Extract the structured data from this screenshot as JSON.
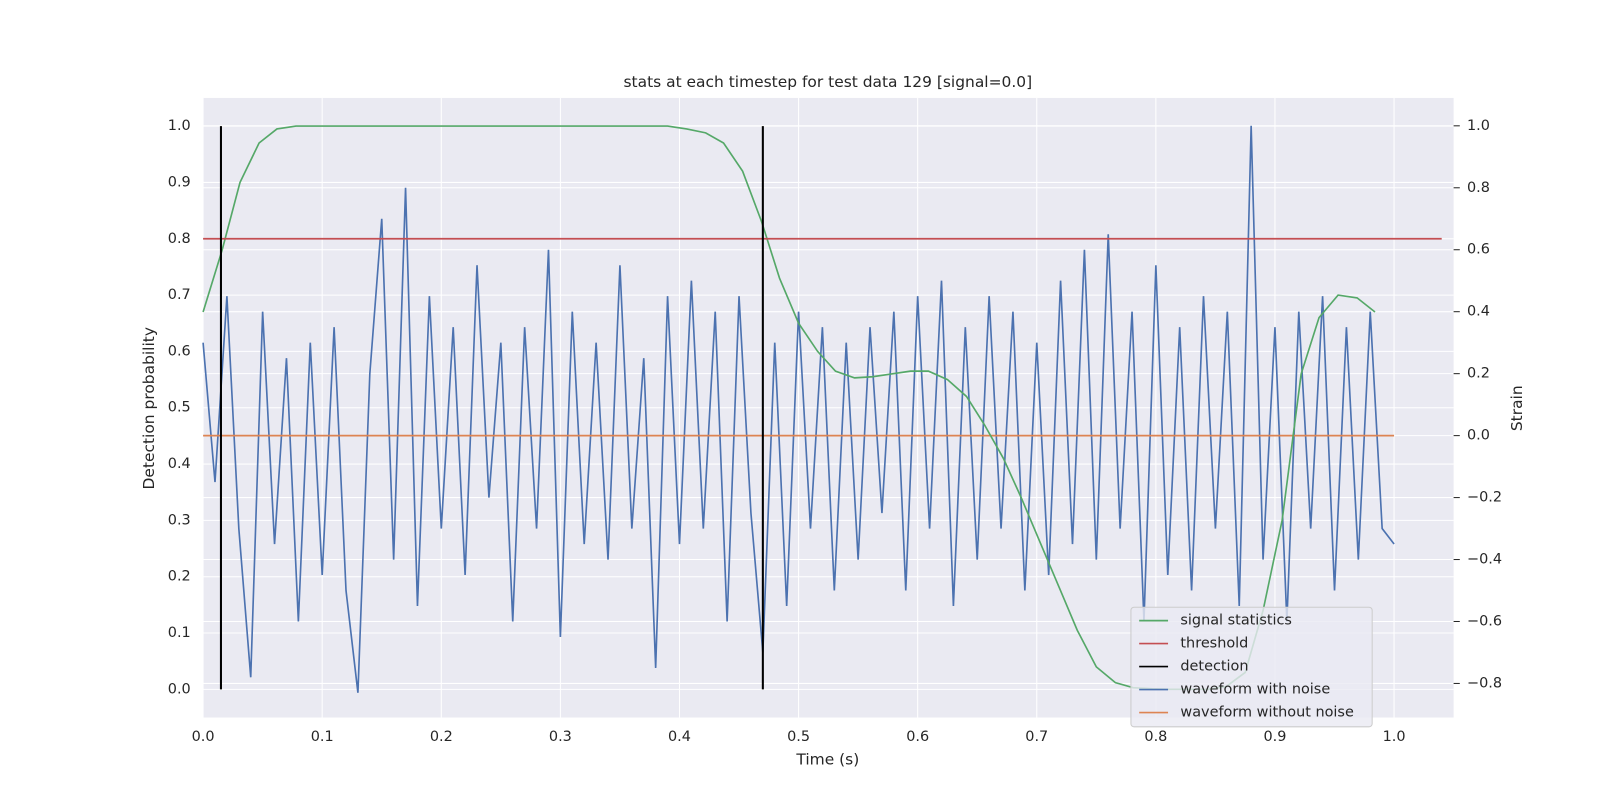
{
  "chart_data": {
    "type": "line",
    "title": "stats at each timestep for test data 129 [signal=0.0]",
    "xlabel": "Time (s)",
    "ylabel": "Detection probability",
    "y2label": "Strain",
    "xlim": [
      0,
      1.05
    ],
    "ylim": [
      -0.05,
      1.05
    ],
    "y2lim": [
      -0.91,
      1.09
    ],
    "xticks": [
      {
        "value": 0,
        "label": "0.0"
      },
      0.1,
      0.2,
      0.3,
      0.4,
      0.5,
      0.6,
      0.7,
      0.8,
      0.9,
      {
        "value": 1,
        "label": "1.0"
      }
    ],
    "yticks": [
      {
        "value": 0,
        "label": "0.0"
      },
      0.1,
      0.2,
      0.3,
      0.4,
      0.5,
      0.6,
      0.7,
      0.8,
      0.9,
      {
        "value": 1,
        "label": "1.0"
      }
    ],
    "y2ticks": [
      {
        "value": -0.8,
        "label": "−0.8"
      },
      {
        "value": -0.6,
        "label": "−0.6"
      },
      {
        "value": -0.4,
        "label": "−0.4"
      },
      {
        "value": -0.2,
        "label": "−0.2"
      },
      {
        "value": 0,
        "label": "0.0"
      },
      0.2,
      0.4,
      0.6,
      0.8,
      {
        "value": 1,
        "label": "1.0"
      }
    ],
    "grid": true,
    "legend": "lower right",
    "series": [
      {
        "name": "signal statistics",
        "color": "#55a868",
        "x": [
          0,
          0.016,
          0.031,
          0.047,
          0.062,
          0.078,
          0.1,
          0.2,
          0.3,
          0.39,
          0.406,
          0.422,
          0.437,
          0.453,
          0.469,
          0.484,
          0.5,
          0.516,
          0.531,
          0.547,
          0.562,
          0.578,
          0.594,
          0.609,
          0.625,
          0.641,
          0.656,
          0.672,
          0.687,
          0.703,
          0.719,
          0.734,
          0.75,
          0.766,
          0.781,
          0.797,
          0.812,
          0.828,
          0.844,
          0.859,
          0.875,
          0.89,
          0.906,
          0.922,
          0.937,
          0.953,
          0.969,
          0.984
        ],
        "values": [
          0.67,
          0.78,
          0.9,
          0.97,
          0.995,
          1.0,
          1.0,
          1.0,
          1.0,
          1.0,
          0.995,
          0.988,
          0.97,
          0.92,
          0.83,
          0.73,
          0.65,
          0.6,
          0.565,
          0.553,
          0.555,
          0.56,
          0.565,
          0.565,
          0.55,
          0.52,
          0.47,
          0.41,
          0.34,
          0.26,
          0.18,
          0.105,
          0.04,
          0.012,
          0.003,
          0.001,
          0.0,
          0.0,
          0.0,
          0.005,
          0.03,
          0.14,
          0.3,
          0.56,
          0.66,
          0.7,
          0.695,
          0.67
        ]
      },
      {
        "name": "threshold",
        "color": "#c44e52",
        "x": [
          0,
          1.04
        ],
        "values": [
          0.8,
          0.8
        ]
      },
      {
        "name": "detection",
        "color": "#000000",
        "style": "vlines",
        "x": [
          0.015,
          0.47
        ],
        "values": [
          1,
          1
        ]
      },
      {
        "name": "waveform with noise",
        "color": "#4c72b0",
        "axis": "y2",
        "x": [
          0,
          0.01,
          0.02,
          0.03,
          0.04,
          0.05,
          0.06,
          0.07,
          0.08,
          0.09,
          0.1,
          0.11,
          0.12,
          0.13,
          0.14,
          0.15,
          0.16,
          0.17,
          0.18,
          0.19,
          0.2,
          0.21,
          0.22,
          0.23,
          0.24,
          0.25,
          0.26,
          0.27,
          0.28,
          0.29,
          0.3,
          0.31,
          0.32,
          0.33,
          0.34,
          0.35,
          0.36,
          0.37,
          0.38,
          0.39,
          0.4,
          0.41,
          0.42,
          0.43,
          0.44,
          0.45,
          0.46,
          0.47,
          0.48,
          0.49,
          0.5,
          0.51,
          0.52,
          0.53,
          0.54,
          0.55,
          0.56,
          0.57,
          0.58,
          0.59,
          0.6,
          0.61,
          0.62,
          0.63,
          0.64,
          0.65,
          0.66,
          0.67,
          0.68,
          0.69,
          0.7,
          0.71,
          0.72,
          0.73,
          0.74,
          0.75,
          0.76,
          0.77,
          0.78,
          0.79,
          0.8,
          0.81,
          0.82,
          0.83,
          0.84,
          0.85,
          0.86,
          0.87,
          0.88,
          0.89,
          0.9,
          0.91,
          0.92,
          0.93,
          0.94,
          0.95,
          0.96,
          0.97,
          0.98,
          0.99,
          1.0
        ],
        "values": [
          0.3,
          -0.15,
          0.45,
          -0.3,
          -0.78,
          0.4,
          -0.35,
          0.25,
          -0.6,
          0.3,
          -0.45,
          0.35,
          -0.5,
          -0.83,
          0.2,
          0.7,
          -0.4,
          0.8,
          -0.55,
          0.45,
          -0.3,
          0.35,
          -0.45,
          0.55,
          -0.2,
          0.3,
          -0.6,
          0.35,
          -0.3,
          0.6,
          -0.65,
          0.4,
          -0.35,
          0.3,
          -0.4,
          0.55,
          -0.3,
          0.25,
          -0.75,
          0.45,
          -0.35,
          0.5,
          -0.3,
          0.4,
          -0.6,
          0.45,
          -0.25,
          -0.7,
          0.3,
          -0.55,
          0.4,
          -0.3,
          0.35,
          -0.5,
          0.3,
          -0.4,
          0.35,
          -0.25,
          0.4,
          -0.5,
          0.45,
          -0.3,
          0.5,
          -0.55,
          0.35,
          -0.4,
          0.45,
          -0.3,
          0.4,
          -0.5,
          0.3,
          -0.45,
          0.5,
          -0.35,
          0.6,
          -0.4,
          0.65,
          -0.3,
          0.4,
          -0.6,
          0.55,
          -0.45,
          0.35,
          -0.5,
          0.45,
          -0.3,
          0.4,
          -0.55,
          1.0,
          -0.4,
          0.35,
          -0.6,
          0.4,
          -0.3,
          0.45,
          -0.5,
          0.35,
          -0.4,
          0.4,
          -0.3,
          -0.35
        ]
      },
      {
        "name": "waveform without noise",
        "color": "#dd8452",
        "axis": "y2",
        "x": [
          0,
          1
        ],
        "values": [
          0,
          0
        ]
      }
    ]
  }
}
